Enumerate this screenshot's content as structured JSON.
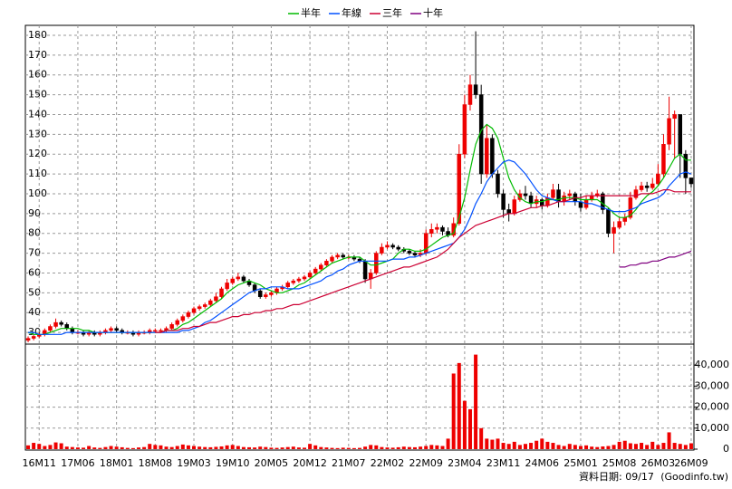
{
  "chart_data": {
    "type": "candlestick",
    "legend": "top",
    "grid": true,
    "up_color": "#ee0000",
    "down_color": "#000000",
    "categories": [
      null,
      null,
      "16M11",
      null,
      null,
      null,
      null,
      null,
      null,
      "17M06",
      null,
      null,
      null,
      null,
      null,
      null,
      "18M01",
      null,
      null,
      null,
      null,
      null,
      null,
      "18M08",
      null,
      null,
      null,
      null,
      null,
      null,
      "19M03",
      null,
      null,
      null,
      null,
      null,
      null,
      "19M10",
      null,
      null,
      null,
      null,
      null,
      null,
      "20M05",
      null,
      null,
      null,
      null,
      null,
      null,
      "20M12",
      null,
      null,
      null,
      null,
      null,
      null,
      "21M07",
      null,
      null,
      null,
      null,
      null,
      null,
      "22M02",
      null,
      null,
      null,
      null,
      null,
      null,
      "22M09",
      null,
      null,
      null,
      null,
      null,
      null,
      "23M04",
      null,
      null,
      null,
      null,
      null,
      null,
      "23M11",
      null,
      null,
      null,
      null,
      null,
      null,
      "24M06",
      null,
      null,
      null,
      null,
      null,
      null,
      "25M01",
      null,
      null,
      null,
      null,
      null,
      null,
      "25M08",
      null,
      null,
      null,
      null,
      null,
      null,
      "26M03",
      null,
      null,
      null,
      null,
      null,
      "26M09"
    ],
    "open": [
      26,
      27,
      28,
      29,
      31,
      33,
      35,
      34,
      32,
      30,
      30,
      29,
      30,
      29,
      30,
      31,
      32,
      31,
      30,
      30,
      29,
      30,
      30,
      31,
      31,
      31,
      32,
      34,
      36,
      38,
      40,
      42,
      43,
      44,
      46,
      48,
      52,
      55,
      57,
      58,
      56,
      54,
      51,
      48,
      49,
      50,
      52,
      53,
      55,
      56,
      57,
      58,
      60,
      62,
      64,
      66,
      68,
      69,
      68,
      68,
      67,
      66,
      57,
      60,
      70,
      73,
      74,
      73,
      72,
      71,
      70,
      69,
      70,
      80,
      82,
      83,
      81,
      79,
      85,
      120,
      145,
      155,
      150,
      110,
      128,
      110,
      100,
      92,
      90,
      97,
      100,
      99,
      95,
      97,
      94,
      98,
      102,
      96,
      99,
      100,
      96,
      93,
      97,
      99,
      100,
      92,
      80,
      83,
      86,
      88,
      98,
      102,
      104,
      103,
      105,
      110,
      125,
      138,
      140,
      120,
      108
    ],
    "high": [
      28,
      29,
      30,
      32,
      34,
      37,
      36,
      35,
      33,
      31,
      31,
      31,
      31,
      31,
      32,
      33,
      33,
      32,
      31,
      31,
      31,
      31,
      32,
      32,
      32,
      33,
      35,
      37,
      39,
      41,
      43,
      44,
      45,
      47,
      50,
      53,
      57,
      58,
      60,
      59,
      57,
      55,
      52,
      50,
      51,
      53,
      54,
      56,
      57,
      58,
      59,
      61,
      63,
      65,
      67,
      69,
      70,
      70,
      69,
      69,
      68,
      67,
      62,
      71,
      75,
      76,
      75,
      74,
      73,
      72,
      71,
      72,
      82,
      85,
      85,
      84,
      83,
      88,
      125,
      150,
      160,
      182,
      155,
      135,
      130,
      112,
      102,
      95,
      99,
      102,
      104,
      101,
      99,
      98,
      100,
      105,
      105,
      101,
      102,
      101,
      100,
      99,
      101,
      102,
      101,
      93,
      86,
      88,
      90,
      101,
      104,
      106,
      106,
      108,
      115,
      130,
      149,
      142,
      140,
      122,
      108
    ],
    "low": [
      25,
      26,
      27,
      28,
      30,
      32,
      33,
      31,
      29,
      29,
      28,
      28,
      28,
      28,
      29,
      30,
      30,
      29,
      29,
      28,
      28,
      29,
      29,
      30,
      30,
      30,
      31,
      33,
      35,
      37,
      39,
      41,
      42,
      43,
      45,
      47,
      51,
      54,
      56,
      55,
      53,
      50,
      47,
      47,
      48,
      49,
      51,
      52,
      54,
      55,
      56,
      57,
      59,
      61,
      63,
      65,
      67,
      67,
      67,
      66,
      65,
      55,
      52,
      59,
      69,
      72,
      72,
      71,
      70,
      69,
      68,
      68,
      69,
      78,
      80,
      79,
      78,
      78,
      84,
      118,
      142,
      148,
      105,
      108,
      108,
      98,
      88,
      86,
      89,
      96,
      97,
      93,
      93,
      92,
      93,
      97,
      93,
      94,
      97,
      94,
      91,
      92,
      96,
      98,
      90,
      78,
      70,
      82,
      84,
      87,
      97,
      101,
      101,
      102,
      104,
      108,
      122,
      118,
      108,
      100,
      103
    ],
    "close": [
      27,
      28,
      29,
      31,
      33,
      35,
      34,
      32,
      30,
      30,
      29,
      30,
      29,
      30,
      31,
      32,
      31,
      30,
      30,
      29,
      30,
      30,
      31,
      31,
      31,
      32,
      34,
      36,
      38,
      40,
      42,
      43,
      44,
      46,
      48,
      52,
      55,
      57,
      58,
      56,
      54,
      51,
      48,
      49,
      50,
      52,
      53,
      55,
      56,
      57,
      58,
      60,
      62,
      64,
      66,
      68,
      69,
      68,
      68,
      67,
      66,
      57,
      60,
      70,
      73,
      74,
      73,
      72,
      71,
      70,
      69,
      70,
      80,
      82,
      83,
      81,
      79,
      85,
      120,
      145,
      155,
      150,
      110,
      128,
      110,
      100,
      92,
      90,
      97,
      100,
      99,
      95,
      97,
      94,
      98,
      102,
      96,
      99,
      100,
      96,
      93,
      97,
      99,
      100,
      92,
      80,
      83,
      86,
      88,
      98,
      102,
      104,
      103,
      105,
      110,
      125,
      138,
      140,
      120,
      108,
      105
    ],
    "ylim": [
      25,
      185
    ],
    "yticks": [
      30,
      40,
      50,
      60,
      70,
      80,
      90,
      100,
      110,
      120,
      130,
      140,
      150,
      160,
      170,
      180
    ],
    "series": [
      {
        "name": "半年",
        "color": "#00bb00",
        "values": [
          30,
          29,
          29,
          29,
          30,
          31,
          32,
          32,
          32,
          32,
          31,
          31,
          30,
          30,
          30,
          30,
          30,
          30,
          30,
          30,
          30,
          30,
          30,
          30,
          30,
          31,
          31,
          32,
          34,
          35,
          37,
          39,
          41,
          43,
          45,
          47,
          50,
          52,
          54,
          55,
          56,
          55,
          54,
          52,
          51,
          50,
          50,
          51,
          52,
          54,
          55,
          57,
          59,
          61,
          63,
          65,
          66,
          67,
          68,
          68,
          68,
          66,
          64,
          64,
          65,
          66,
          67,
          70,
          72,
          72,
          71,
          71,
          72,
          74,
          76,
          78,
          79,
          80,
          88,
          98,
          112,
          125,
          132,
          135,
          133,
          128,
          118,
          108,
          102,
          98,
          96,
          95,
          96,
          96,
          97,
          97,
          97,
          98,
          98,
          98,
          97,
          97,
          97,
          97,
          95,
          93,
          90,
          88,
          88,
          89,
          92,
          96,
          99,
          101,
          104,
          108,
          113,
          118,
          120,
          117,
          117
        ]
      },
      {
        "name": "年線",
        "color": "#0050ff",
        "values": [
          30,
          30,
          29,
          29,
          29,
          29,
          29,
          30,
          30,
          30,
          30,
          30,
          30,
          30,
          30,
          30,
          30,
          30,
          30,
          30,
          30,
          30,
          30,
          30,
          30,
          30,
          30,
          30,
          31,
          31,
          32,
          33,
          35,
          36,
          38,
          40,
          42,
          44,
          46,
          48,
          50,
          51,
          52,
          52,
          53,
          53,
          53,
          52,
          52,
          52,
          53,
          54,
          55,
          56,
          58,
          59,
          61,
          62,
          64,
          65,
          66,
          66,
          66,
          66,
          66,
          66,
          67,
          67,
          67,
          68,
          68,
          69,
          70,
          71,
          72,
          73,
          74,
          75,
          78,
          82,
          88,
          95,
          100,
          106,
          110,
          113,
          116,
          117,
          116,
          113,
          110,
          106,
          102,
          99,
          98,
          97,
          96,
          96,
          96,
          96,
          96,
          95,
          95,
          94,
          93,
          92,
          91,
          91,
          91,
          92,
          93,
          95,
          96,
          97,
          98,
          100,
          104,
          107,
          110,
          111,
          110
        ]
      },
      {
        "name": "三年",
        "color": "#cc0033",
        "values": [
          null,
          null,
          null,
          null,
          null,
          null,
          null,
          null,
          null,
          null,
          null,
          null,
          null,
          null,
          null,
          null,
          null,
          null,
          null,
          null,
          null,
          null,
          null,
          30,
          30,
          31,
          31,
          31,
          32,
          32,
          33,
          33,
          34,
          35,
          35,
          36,
          37,
          38,
          38,
          39,
          39,
          40,
          40,
          41,
          41,
          42,
          42,
          43,
          44,
          44,
          45,
          46,
          47,
          48,
          49,
          50,
          51,
          52,
          53,
          54,
          55,
          56,
          57,
          58,
          59,
          60,
          61,
          62,
          63,
          63,
          64,
          65,
          66,
          67,
          68,
          70,
          72,
          75,
          78,
          80,
          82,
          84,
          85,
          86,
          87,
          88,
          89,
          90,
          90,
          91,
          92,
          93,
          93,
          94,
          94,
          95,
          96,
          96,
          97,
          98,
          98,
          99,
          99,
          99,
          99,
          99,
          99,
          99,
          99,
          99,
          99,
          100,
          100,
          100,
          101,
          102,
          102,
          101,
          101,
          101,
          101
        ]
      },
      {
        "name": "十年",
        "color": "#800080",
        "values": [
          null,
          null,
          null,
          null,
          null,
          null,
          null,
          null,
          null,
          null,
          null,
          null,
          null,
          null,
          null,
          null,
          null,
          null,
          null,
          null,
          null,
          null,
          null,
          null,
          null,
          null,
          null,
          null,
          null,
          null,
          null,
          null,
          null,
          null,
          null,
          null,
          null,
          null,
          null,
          null,
          null,
          null,
          null,
          null,
          null,
          null,
          null,
          null,
          null,
          null,
          null,
          null,
          null,
          null,
          null,
          null,
          null,
          null,
          null,
          null,
          null,
          null,
          null,
          null,
          null,
          null,
          null,
          null,
          null,
          null,
          null,
          null,
          null,
          null,
          null,
          null,
          null,
          null,
          null,
          null,
          null,
          null,
          null,
          null,
          null,
          null,
          null,
          null,
          null,
          null,
          null,
          null,
          null,
          null,
          null,
          null,
          null,
          null,
          null,
          null,
          null,
          null,
          null,
          null,
          null,
          null,
          null,
          63,
          63,
          64,
          64,
          65,
          65,
          66,
          66,
          67,
          68,
          68,
          69,
          70,
          71
        ]
      }
    ],
    "volume": {
      "color": "#ee0000",
      "values": [
        1800,
        3000,
        2500,
        1500,
        2000,
        3200,
        2800,
        1200,
        1000,
        800,
        700,
        1500,
        800,
        600,
        1000,
        1500,
        1200,
        900,
        600,
        500,
        800,
        1000,
        2500,
        2000,
        1800,
        1200,
        1000,
        1500,
        2200,
        1800,
        1500,
        1200,
        1000,
        900,
        1100,
        1300,
        1800,
        2000,
        1500,
        1000,
        900,
        800,
        1200,
        1000,
        700,
        600,
        800,
        1000,
        1200,
        800,
        700,
        2500,
        1800,
        1000,
        800,
        600,
        500,
        700,
        600,
        500,
        600,
        1200,
        2000,
        1800,
        1000,
        800,
        700,
        900,
        1200,
        1000,
        900,
        1200,
        1500,
        2000,
        1800,
        1500,
        5000,
        36000,
        41000,
        23000,
        19000,
        45000,
        10000,
        5000,
        4500,
        5000,
        3000,
        2500,
        3500,
        2000,
        2500,
        3000,
        4000,
        5000,
        3500,
        3000,
        2000,
        1500,
        2500,
        2000,
        1500,
        1800,
        1200,
        1000,
        1300,
        1500,
        2000,
        3500,
        4000,
        2800,
        2500,
        3000,
        2000,
        3500,
        2000,
        3000,
        8000,
        3000,
        2500,
        2000,
        2800
      ],
      "ylim": [
        0,
        50000
      ],
      "yticks": [
        0,
        {
          "value": 10000,
          "label": "10,000"
        },
        {
          "value": 20000,
          "label": "20,000"
        },
        {
          "value": 30000,
          "label": "30,000"
        },
        {
          "value": 40000,
          "label": "40,000"
        }
      ]
    },
    "footer": {
      "date": "資料日期: 09/17",
      "source": "(Goodinfo.tw)"
    }
  }
}
